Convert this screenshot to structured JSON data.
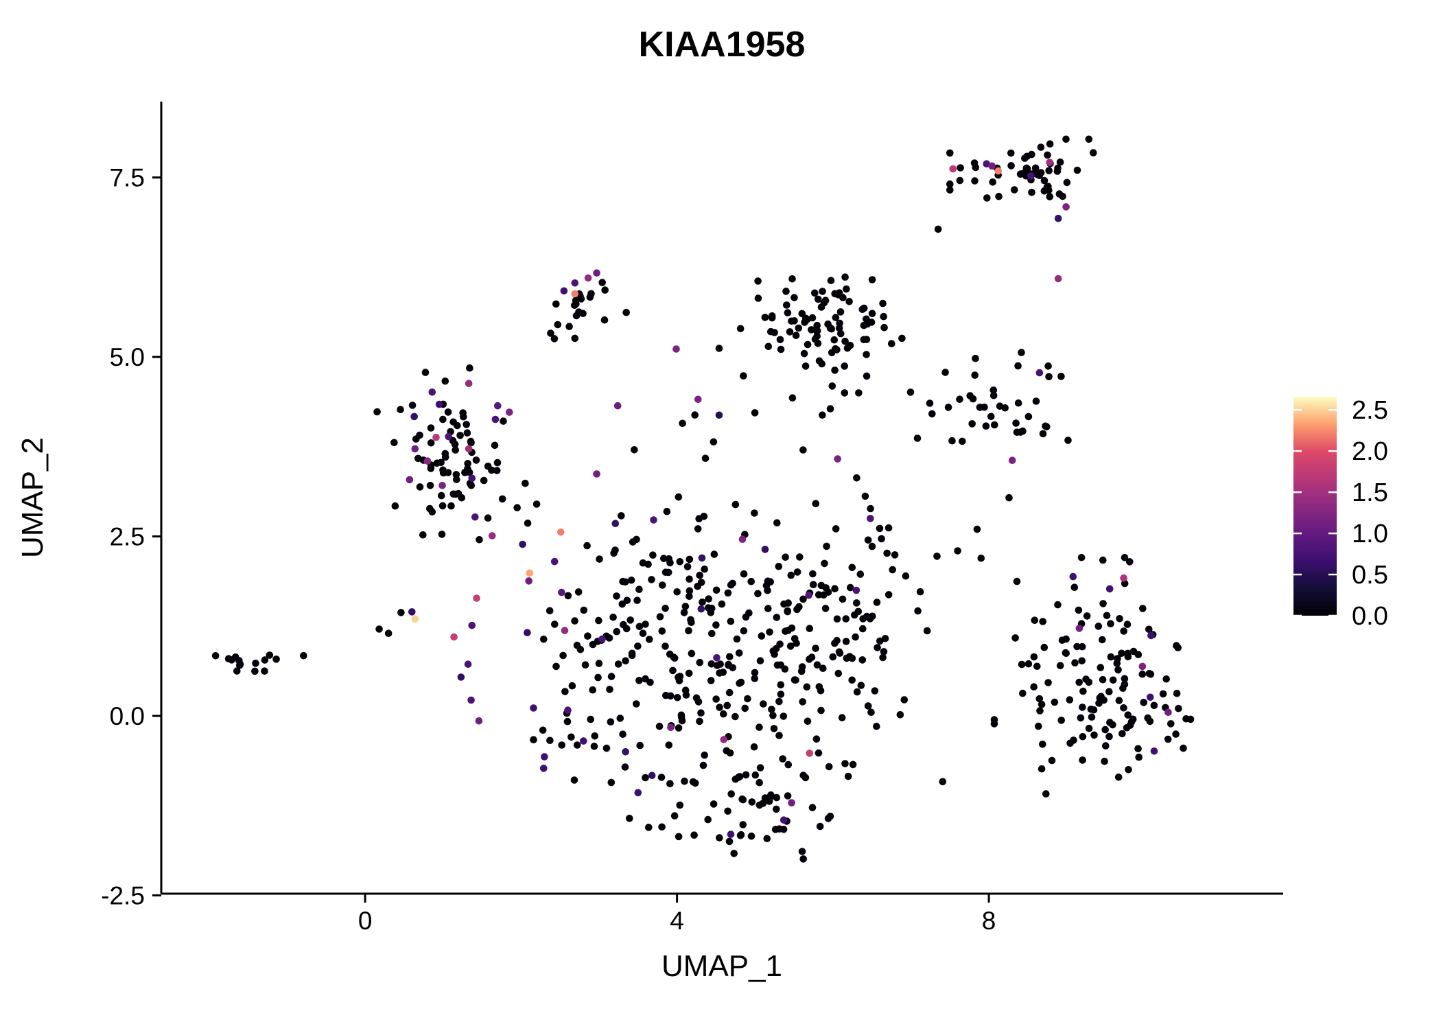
{
  "title": "KIAA1958",
  "chart_data": {
    "type": "scatter",
    "title": "KIAA1958",
    "xlabel": "UMAP_1",
    "ylabel": "UMAP_2",
    "x_range": [
      -2.615,
      11.775
    ],
    "y_range": [
      -2.476,
      8.557
    ],
    "x_ticks": [
      0,
      4,
      8
    ],
    "x_tick_labels": [
      "0",
      "4",
      "8"
    ],
    "y_ticks": [
      -2.5,
      0.0,
      2.5,
      5.0,
      7.5
    ],
    "y_tick_labels": [
      "-2.5",
      "0.0",
      "2.5",
      "5.0",
      "7.5"
    ],
    "grid": false,
    "legend_position": "right",
    "point_radius_px": 5.3,
    "point_color_zero": "#050108",
    "color_scale": {
      "name": "magma",
      "min": 0.0,
      "max": 2.66,
      "ticks": [
        0.0,
        0.5,
        1.0,
        1.5,
        2.0,
        2.5
      ],
      "tick_labels": [
        "0.0",
        "0.5",
        "1.0",
        "1.5",
        "2.0",
        "2.5"
      ],
      "stops": [
        [
          0.0,
          "#000004"
        ],
        [
          0.125,
          "#140e36"
        ],
        [
          0.25,
          "#3b0f70"
        ],
        [
          0.375,
          "#641a80"
        ],
        [
          0.5,
          "#8c2981"
        ],
        [
          0.625,
          "#b73779"
        ],
        [
          0.75,
          "#de4968"
        ],
        [
          0.875,
          "#fe9f6d"
        ],
        [
          1.0,
          "#fcfdbf"
        ]
      ]
    },
    "clusters": [
      {
        "name": "far-left",
        "cx": -1.55,
        "cy": 0.73,
        "sx": 0.16,
        "sy": 0.09,
        "n": 13
      },
      {
        "name": "left",
        "cx": 1.12,
        "cy": 3.65,
        "sx": 0.42,
        "sy": 0.52,
        "n": 74
      },
      {
        "name": "top-middle",
        "cx": 2.72,
        "cy": 5.72,
        "sx": 0.26,
        "sy": 0.21,
        "n": 17
      },
      {
        "name": "north",
        "cx": 5.85,
        "cy": 5.35,
        "sx": 0.45,
        "sy": 0.37,
        "n": 88
      },
      {
        "name": "top-right",
        "cx": 8.42,
        "cy": 7.55,
        "sx": 0.4,
        "sy": 0.21,
        "n": 54
      },
      {
        "name": "mid-right",
        "cx": 8.05,
        "cy": 4.35,
        "sx": 0.42,
        "sy": 0.37,
        "n": 38
      },
      {
        "name": "east",
        "cx": 9.45,
        "cy": 0.55,
        "sx": 0.6,
        "sy": 0.72,
        "n": 128
      },
      {
        "name": "central-a",
        "cx": 3.35,
        "cy": 1.25,
        "sx": 0.52,
        "sy": 0.72,
        "n": 66
      },
      {
        "name": "central-b",
        "cx": 4.8,
        "cy": 0.85,
        "sx": 0.65,
        "sy": 0.78,
        "n": 78
      },
      {
        "name": "central-c",
        "cx": 5.9,
        "cy": 0.95,
        "sx": 0.55,
        "sy": 0.72,
        "n": 66
      },
      {
        "name": "central-south",
        "cx": 4.6,
        "cy": -0.95,
        "sx": 0.85,
        "sy": 0.42,
        "n": 52
      },
      {
        "name": "central-north",
        "cx": 4.4,
        "cy": 2.15,
        "sx": 0.75,
        "sy": 0.38,
        "n": 34
      },
      {
        "name": "central-ne",
        "cx": 6.3,
        "cy": 2.05,
        "sx": 0.45,
        "sy": 0.48,
        "n": 24
      },
      {
        "name": "south-tail",
        "cx": 5.25,
        "cy": -1.55,
        "sx": 0.45,
        "sy": 0.22,
        "n": 16
      },
      {
        "name": "central-west",
        "cx": 2.85,
        "cy": 0.35,
        "sx": 0.3,
        "sy": 0.65,
        "n": 22
      },
      {
        "name": "halo",
        "cx": 4.9,
        "cy": 1.2,
        "sx": 1.5,
        "sy": 1.25,
        "n": 36
      },
      {
        "name": "north-halo",
        "cx": 5.5,
        "cy": 4.35,
        "sx": 0.8,
        "sy": 0.45,
        "n": 12
      }
    ],
    "extra_black_points": [
      [
        -1.14,
        0.79
      ],
      [
        -0.79,
        0.84
      ],
      [
        0.18,
        1.21
      ],
      [
        0.46,
        1.44
      ],
      [
        0.3,
        1.15
      ],
      [
        7.35,
        6.78
      ],
      [
        4.54,
        5.12
      ],
      [
        2.38,
        5.33
      ],
      [
        2.47,
        5.45
      ],
      [
        2.69,
        5.26
      ],
      [
        3.35,
        5.62
      ],
      [
        7.6,
        2.3
      ],
      [
        7.85,
        2.6
      ],
      [
        1.95,
        2.9
      ],
      [
        2.2,
        2.95
      ]
    ],
    "expressing_points": [
      [
        7.54,
        7.62,
        1.7
      ],
      [
        7.97,
        7.69,
        0.8
      ],
      [
        8.04,
        7.66,
        1.1
      ],
      [
        8.12,
        7.59,
        2.2
      ],
      [
        8.78,
        7.71,
        1.5
      ],
      [
        8.54,
        7.52,
        0.8
      ],
      [
        8.99,
        7.09,
        1.2
      ],
      [
        8.89,
        6.93,
        0.6
      ],
      [
        8.89,
        6.09,
        1.4
      ],
      [
        2.97,
        6.17,
        1.1
      ],
      [
        2.86,
        6.1,
        1.4
      ],
      [
        2.69,
        6.03,
        0.8
      ],
      [
        2.55,
        5.92,
        0.7
      ],
      [
        2.69,
        5.88,
        2.2
      ],
      [
        3.99,
        5.11,
        1.2
      ],
      [
        4.27,
        4.41,
        1.2
      ],
      [
        4.54,
        4.19,
        0.5
      ],
      [
        3.24,
        4.32,
        1.1
      ],
      [
        6.06,
        3.58,
        1.2
      ],
      [
        1.33,
        4.63,
        1.4
      ],
      [
        0.86,
        4.51,
        0.8
      ],
      [
        0.95,
        4.34,
        0.7
      ],
      [
        1.7,
        4.32,
        0.9
      ],
      [
        1.85,
        4.23,
        1.2
      ],
      [
        1.67,
        4.13,
        0.8
      ],
      [
        0.63,
        4.17,
        0.6
      ],
      [
        0.91,
        3.88,
        1.7
      ],
      [
        1.07,
        3.89,
        0.8
      ],
      [
        0.64,
        3.72,
        1.1
      ],
      [
        1.33,
        3.72,
        1.5
      ],
      [
        0.8,
        3.55,
        1.3
      ],
      [
        0.57,
        3.29,
        1.1
      ],
      [
        0.99,
        3.21,
        1.2
      ],
      [
        1.37,
        3.31,
        0.7
      ],
      [
        1.41,
        2.77,
        0.8
      ],
      [
        1.63,
        2.51,
        1.4
      ],
      [
        2.51,
        2.56,
        2.2
      ],
      [
        2.02,
        2.39,
        0.6
      ],
      [
        2.43,
        2.15,
        0.8
      ],
      [
        2.11,
        1.99,
        2.35
      ],
      [
        2.1,
        1.88,
        1.1
      ],
      [
        2.52,
        1.72,
        0.9
      ],
      [
        1.43,
        1.64,
        1.8
      ],
      [
        0.6,
        1.45,
        0.6
      ],
      [
        0.64,
        1.35,
        2.5
      ],
      [
        1.37,
        1.26,
        0.8
      ],
      [
        1.14,
        1.1,
        1.8
      ],
      [
        2.08,
        1.16,
        0.6
      ],
      [
        2.56,
        1.19,
        1.4
      ],
      [
        3.04,
        1.07,
        0.8
      ],
      [
        1.32,
        0.72,
        0.8
      ],
      [
        1.23,
        0.54,
        0.6
      ],
      [
        1.36,
        0.22,
        0.8
      ],
      [
        2.16,
        0.11,
        0.7
      ],
      [
        1.46,
        -0.07,
        1.1
      ],
      [
        2.6,
        0.08,
        0.8
      ],
      [
        3.21,
        2.68,
        0.6
      ],
      [
        3.7,
        2.73,
        0.8
      ],
      [
        4.84,
        2.46,
        1.2
      ],
      [
        5.13,
        2.32,
        0.6
      ],
      [
        4.32,
        2.2,
        0.6
      ],
      [
        6.48,
        2.75,
        0.8
      ],
      [
        5.69,
        1.68,
        0.9
      ],
      [
        6.3,
        1.75,
        0.8
      ],
      [
        4.31,
        1.49,
        0.6
      ],
      [
        4.51,
        0.81,
        0.8
      ],
      [
        2.97,
        3.37,
        1.1
      ],
      [
        2.8,
        -0.35,
        0.7
      ],
      [
        3.34,
        -0.5,
        0.6
      ],
      [
        3.92,
        -0.16,
        1.2
      ],
      [
        4.6,
        -0.33,
        1.4
      ],
      [
        5.7,
        -0.52,
        1.8
      ],
      [
        3.68,
        -0.83,
        0.6
      ],
      [
        2.3,
        -0.57,
        0.7
      ],
      [
        2.29,
        -0.73,
        0.7
      ],
      [
        3.5,
        -1.07,
        0.7
      ],
      [
        5.47,
        -1.21,
        1.1
      ],
      [
        5.37,
        -1.45,
        0.7
      ],
      [
        4.69,
        -1.65,
        0.7
      ],
      [
        8.65,
        4.78,
        0.8
      ],
      [
        8.3,
        3.56,
        1.2
      ],
      [
        9.08,
        1.94,
        0.7
      ],
      [
        9.73,
        1.92,
        1.6
      ],
      [
        9.55,
        1.77,
        0.7
      ],
      [
        9.16,
        1.22,
        1.1
      ],
      [
        10.08,
        1.12,
        0.7
      ],
      [
        9.97,
        0.69,
        1.2
      ],
      [
        10.07,
        0.26,
        0.7
      ],
      [
        10.3,
        0.05,
        1.1
      ],
      [
        10.12,
        -0.49,
        0.7
      ]
    ]
  }
}
